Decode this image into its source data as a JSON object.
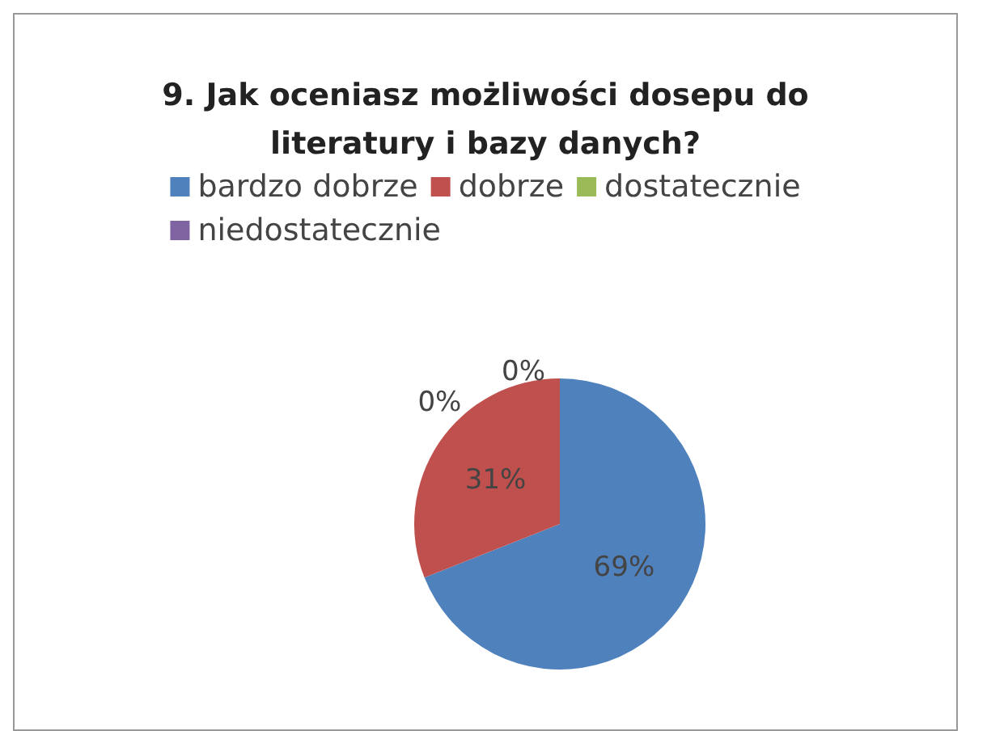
{
  "chart_data": {
    "type": "pie",
    "title": "9. Jak oceniasz możliwości dosepu do\nliteratury i bazy danych?",
    "categories": [
      "bardzo dobrze",
      "dobrze",
      "dostatecznie",
      "niedostatecznie"
    ],
    "values": [
      69,
      31,
      0,
      0
    ],
    "colors": [
      "#4f81bd",
      "#c0504d",
      "#9bbb59",
      "#8064a2"
    ],
    "value_labels": [
      "69%",
      "31%",
      "0%",
      "0%"
    ],
    "legend": "top"
  }
}
